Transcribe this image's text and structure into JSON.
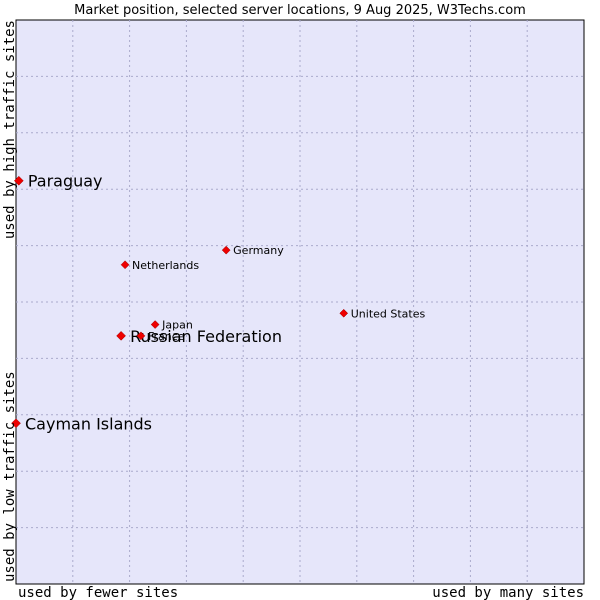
{
  "chart_data": {
    "type": "scatter",
    "title": "Market position, selected server locations, 9 Aug 2025, W3Techs.com",
    "xlabel_left": "used by fewer sites",
    "xlabel_right": "used by many sites",
    "ylabel_bottom": "used by low traffic sites",
    "ylabel_top": "used by high traffic sites",
    "xlim": [
      0,
      100
    ],
    "ylim": [
      0,
      100
    ],
    "grid": true,
    "colors": {
      "plot_bg": "#e6e6fa",
      "grid": "#aaaacc",
      "point": "#ee0000",
      "border": "#000000"
    },
    "points": [
      {
        "label": "Paraguay",
        "x": 0.5,
        "y": 71.5,
        "size": "large"
      },
      {
        "label": "Cayman Islands",
        "x": 0.0,
        "y": 28.5,
        "size": "large"
      },
      {
        "label": "Russian Federation",
        "x": 18.5,
        "y": 44.0,
        "size": "large"
      },
      {
        "label": "Japan",
        "x": 24.5,
        "y": 46.0,
        "size": "small"
      },
      {
        "label": "France",
        "x": 22.0,
        "y": 44.0,
        "size": "small"
      },
      {
        "label": "Netherlands",
        "x": 19.2,
        "y": 56.6,
        "size": "small"
      },
      {
        "label": "Germany",
        "x": 37.0,
        "y": 59.2,
        "size": "small"
      },
      {
        "label": "United States",
        "x": 57.7,
        "y": 48.0,
        "size": "small"
      }
    ]
  }
}
